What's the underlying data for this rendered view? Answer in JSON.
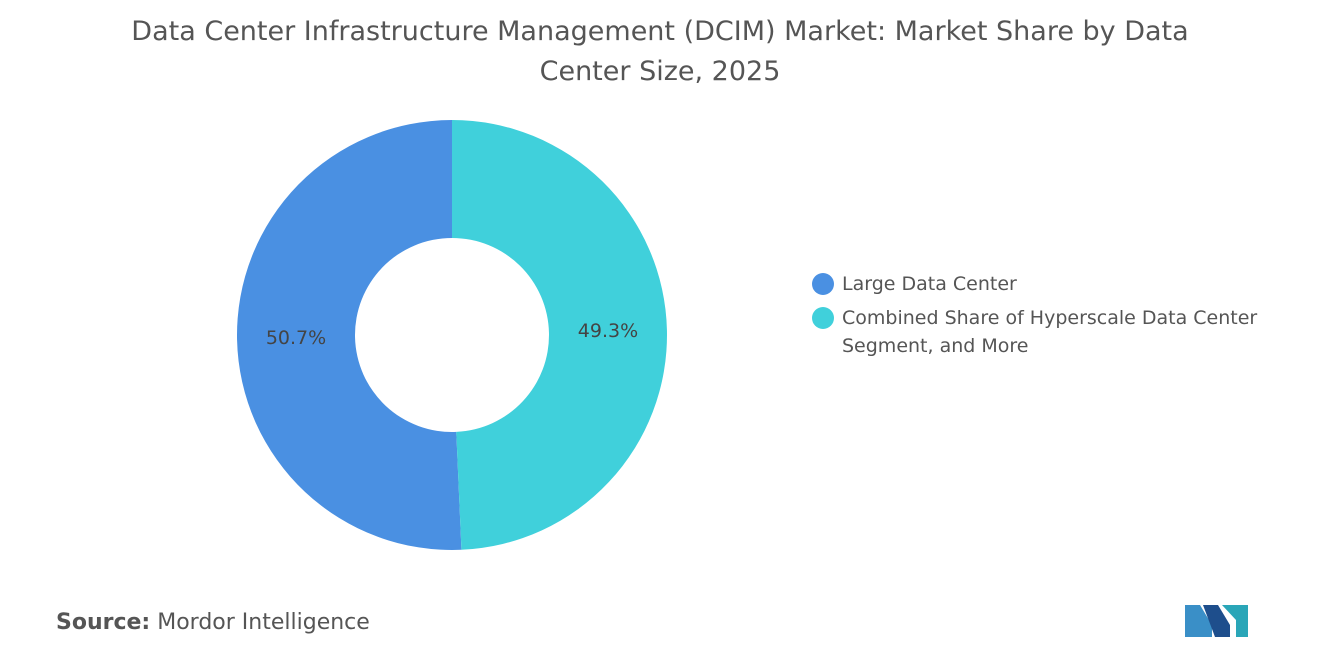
{
  "chart_data": {
    "type": "donut",
    "title": "Data Center Infrastructure Management (DCIM) Market: Market Share by Data Center Size, 2025",
    "categories": [
      "Large Data Center",
      "Combined Share of Hyperscale Data Center Segment, and More"
    ],
    "values": [
      50.7,
      49.3
    ],
    "value_labels": [
      "50.7%",
      "49.3%"
    ],
    "colors": [
      "#4a90e2",
      "#40d0db"
    ],
    "legend": "right"
  },
  "source": {
    "label": "Source:",
    "name": "Mordor Intelligence"
  }
}
